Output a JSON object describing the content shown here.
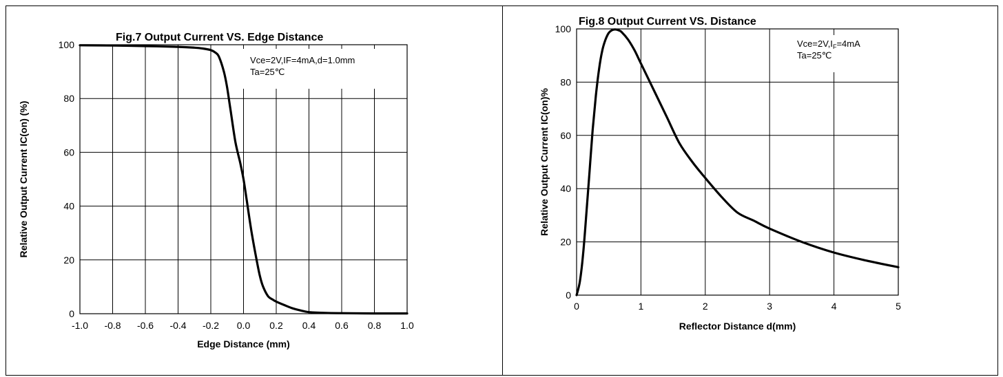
{
  "chart_data": [
    {
      "type": "line",
      "title": "Fig.7 Output Current VS. Edge Distance",
      "xlabel": "Edge Distance (mm)",
      "ylabel": "Relative Output Current IC(on) (%)",
      "xlim": [
        -1.0,
        1.0
      ],
      "ylim": [
        0,
        100
      ],
      "x_ticks": [
        "-1.0",
        "-0.8",
        "-0.6",
        "-0.4",
        "-0.2",
        "0.0",
        "0.2",
        "0.4",
        "0.6",
        "0.8",
        "1.0"
      ],
      "y_ticks": [
        "0",
        "20",
        "40",
        "60",
        "80",
        "100"
      ],
      "grid": true,
      "annotation_lines": [
        "Vce=2V,IF=4mA,d=1.0mm",
        "Ta=25℃"
      ],
      "series": [
        {
          "x": [
            -1.0,
            -0.8,
            -0.6,
            -0.4,
            -0.3,
            -0.25,
            -0.2,
            -0.17,
            -0.15,
            -0.12,
            -0.1,
            -0.08,
            -0.05,
            -0.02,
            0.0,
            0.02,
            0.05,
            0.08,
            0.1,
            0.12,
            0.15,
            0.18,
            0.2,
            0.25,
            0.3,
            0.35,
            0.4,
            0.5,
            0.6,
            0.8,
            1.0
          ],
          "y": [
            99.8,
            99.7,
            99.5,
            99.2,
            98.9,
            98.6,
            98.0,
            97.0,
            95.5,
            90.0,
            84.0,
            76.0,
            64.0,
            56.0,
            50.0,
            42.0,
            30.0,
            20.0,
            14.0,
            10.0,
            6.5,
            5.2,
            4.5,
            3.2,
            2.0,
            1.2,
            0.6,
            0.3,
            0.2,
            0.1,
            0.1
          ]
        }
      ]
    },
    {
      "type": "line",
      "title": "Fig.8 Output Current VS. Distance",
      "xlabel": "Reflector Distance d(mm)",
      "ylabel": "Relative Output Current IC(on)%",
      "xlim": [
        0,
        5
      ],
      "ylim": [
        0,
        100
      ],
      "x_ticks": [
        "0",
        "1",
        "2",
        "3",
        "4",
        "5"
      ],
      "y_ticks": [
        "0",
        "20",
        "40",
        "60",
        "80",
        "100"
      ],
      "grid": true,
      "annotation_lines": [
        {
          "main": "Vce=2V,I",
          "sub": "F",
          "tail": "=4mA"
        },
        {
          "main": "Ta=25℃",
          "sub": "",
          "tail": ""
        }
      ],
      "series": [
        {
          "x": [
            0.0,
            0.05,
            0.1,
            0.15,
            0.2,
            0.25,
            0.3,
            0.35,
            0.4,
            0.45,
            0.5,
            0.55,
            0.6,
            0.65,
            0.7,
            0.8,
            0.9,
            1.0,
            1.2,
            1.4,
            1.6,
            1.8,
            2.0,
            2.25,
            2.5,
            2.75,
            3.0,
            3.5,
            4.0,
            4.5,
            5.0
          ],
          "y": [
            0,
            5,
            15,
            30,
            46,
            62,
            75,
            85,
            92,
            96,
            98.5,
            99.5,
            99.8,
            99.5,
            98.8,
            96,
            92,
            87,
            77,
            67,
            57,
            50,
            44,
            37,
            31,
            28,
            25,
            20,
            16,
            13,
            10.5
          ]
        }
      ]
    }
  ]
}
